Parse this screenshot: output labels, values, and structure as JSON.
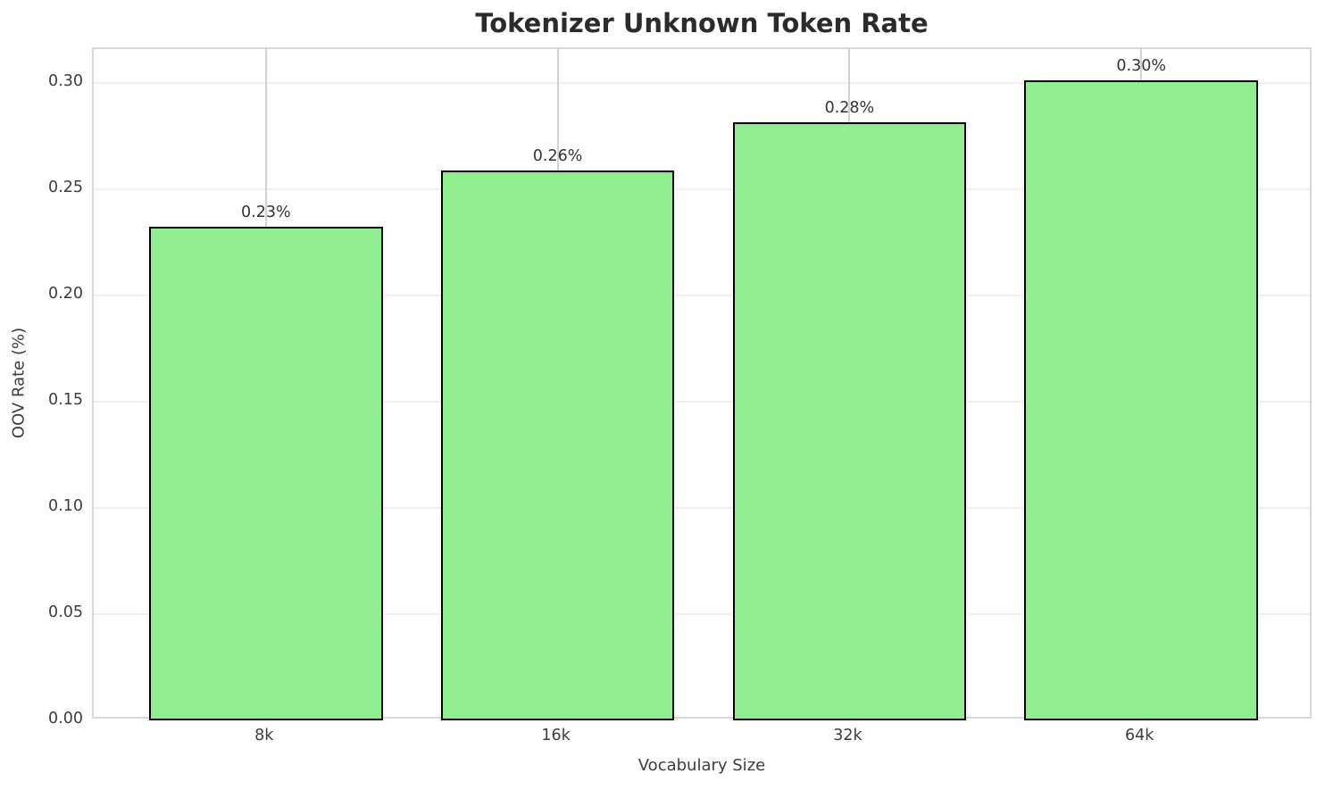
{
  "chart_data": {
    "type": "bar",
    "title": "Tokenizer Unknown Token Rate",
    "xlabel": "Vocabulary Size",
    "ylabel": "OOV Rate (%)",
    "categories": [
      "8k",
      "16k",
      "32k",
      "64k"
    ],
    "values": [
      0.2323,
      0.2588,
      0.2815,
      0.3012
    ],
    "bar_labels": [
      "0.23%",
      "0.26%",
      "0.28%",
      "0.30%"
    ],
    "ytick_labels": [
      "0.00",
      "0.05",
      "0.10",
      "0.15",
      "0.20",
      "0.25",
      "0.30"
    ],
    "yticks": [
      0.0,
      0.05,
      0.1,
      0.15,
      0.2,
      0.25,
      0.3
    ],
    "ylim": [
      0,
      0.316
    ],
    "xlim": [
      -0.59,
      3.59
    ],
    "bar_width": 0.8,
    "grid": true,
    "legend": null,
    "colors": {
      "bar_fill": "#90EE90",
      "bar_edge": "#000000",
      "grid_horizontal": "#efefef",
      "grid_vertical": "#d2d2d2",
      "spine": "#d9d9d9",
      "title_text": "#2b2b2b",
      "tick_text": "#3d3d3d",
      "bar_label_text": "#333333"
    }
  }
}
